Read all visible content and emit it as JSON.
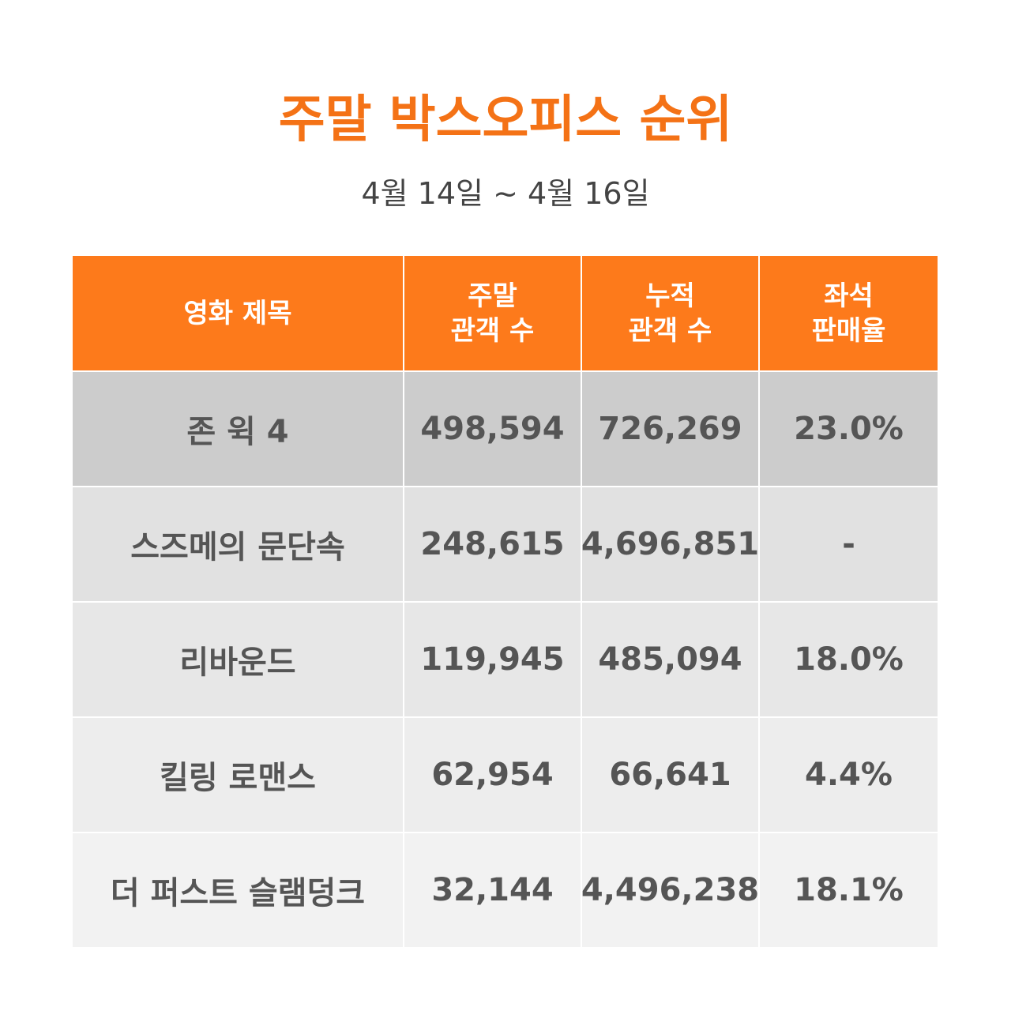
{
  "header": {
    "title": "주말 박스오피스 순위",
    "subtitle": "4월 14일 ~ 4월 16일"
  },
  "table": {
    "columns": [
      [
        "영화 제목"
      ],
      [
        "주말",
        "관객 수"
      ],
      [
        "누적",
        "관객 수"
      ],
      [
        "좌석",
        "판매율"
      ]
    ],
    "rows": [
      [
        "존 윅 4",
        "498,594",
        "726,269",
        "23.0%"
      ],
      [
        "스즈메의 문단속",
        "248,615",
        "4,696,851",
        "-"
      ],
      [
        "리바운드",
        "119,945",
        "485,094",
        "18.0%"
      ],
      [
        "킬링 로맨스",
        "62,954",
        "66,641",
        "4.4%"
      ],
      [
        "더 퍼스트 슬램덩크",
        "32,144",
        "4,496,238",
        "18.1%"
      ]
    ]
  }
}
